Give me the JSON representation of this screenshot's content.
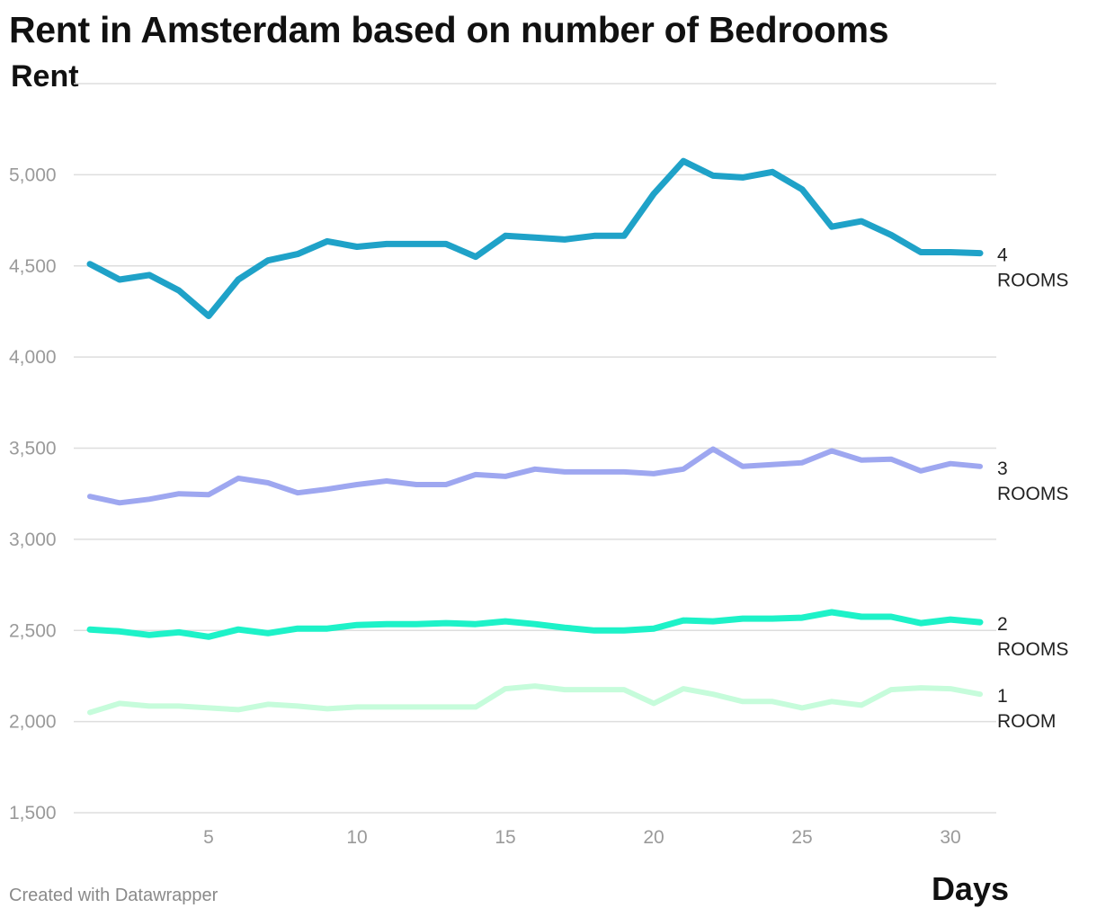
{
  "title": "Rent in Amsterdam based on number of Bedrooms",
  "credit": "Created with Datawrapper",
  "colors": {
    "4 ROOMS": "#1fa2c8",
    "3 ROOMS": "#9ea7f0",
    "2 ROOMS": "#1df2c8",
    "1 ROOM": "#c6fcdb",
    "grid": "#dedede",
    "tick_text": "#9a9a9a"
  },
  "chart_data": {
    "type": "line",
    "title": "Rent in Amsterdam based on number of Bedrooms",
    "xlabel": "Days",
    "ylabel": "Rent",
    "xlim": [
      1,
      31
    ],
    "ylim": [
      1500,
      5500
    ],
    "xticks": [
      5,
      10,
      15,
      20,
      25,
      30
    ],
    "yticks": [
      1500,
      2000,
      2500,
      3000,
      3500,
      4000,
      4500,
      5000
    ],
    "ytick_labels": [
      "1,500",
      "2,000",
      "2,500",
      "3,000",
      "3,500",
      "4,000",
      "4,500",
      "5,000"
    ],
    "grid": true,
    "legend": "direct labels at line ends",
    "x": [
      1,
      2,
      3,
      4,
      5,
      6,
      7,
      8,
      9,
      10,
      11,
      12,
      13,
      14,
      15,
      16,
      17,
      18,
      19,
      20,
      21,
      22,
      23,
      24,
      25,
      26,
      27,
      28,
      29,
      30,
      31
    ],
    "series": [
      {
        "name": "4 ROOMS",
        "label_lines": [
          "4",
          "ROOMS"
        ],
        "values": [
          4510,
          4425,
          4450,
          4365,
          4225,
          4425,
          4530,
          4565,
          4635,
          4605,
          4620,
          4620,
          4620,
          4550,
          4665,
          4655,
          4645,
          4665,
          4665,
          4895,
          5075,
          4995,
          4985,
          5015,
          4920,
          4715,
          4745,
          4670,
          4575,
          4575,
          4570
        ]
      },
      {
        "name": "3 ROOMS",
        "label_lines": [
          "3",
          "ROOMS"
        ],
        "values": [
          3235,
          3200,
          3220,
          3250,
          3245,
          3335,
          3310,
          3255,
          3275,
          3300,
          3320,
          3300,
          3300,
          3355,
          3345,
          3385,
          3370,
          3370,
          3370,
          3360,
          3385,
          3495,
          3400,
          3410,
          3420,
          3485,
          3435,
          3440,
          3375,
          3415,
          3400
        ]
      },
      {
        "name": "2 ROOMS",
        "label_lines": [
          "2",
          "ROOMS"
        ],
        "values": [
          2505,
          2495,
          2475,
          2490,
          2465,
          2505,
          2485,
          2510,
          2510,
          2530,
          2535,
          2535,
          2540,
          2535,
          2550,
          2535,
          2515,
          2500,
          2500,
          2510,
          2555,
          2550,
          2565,
          2565,
          2570,
          2600,
          2575,
          2575,
          2540,
          2560,
          2545
        ]
      },
      {
        "name": "1 ROOM",
        "label_lines": [
          "1",
          "ROOM"
        ],
        "values": [
          2050,
          2100,
          2085,
          2085,
          2075,
          2065,
          2095,
          2085,
          2070,
          2080,
          2080,
          2080,
          2080,
          2080,
          2180,
          2195,
          2175,
          2175,
          2175,
          2100,
          2180,
          2150,
          2110,
          2110,
          2075,
          2110,
          2090,
          2175,
          2185,
          2180,
          2150
        ]
      }
    ]
  }
}
